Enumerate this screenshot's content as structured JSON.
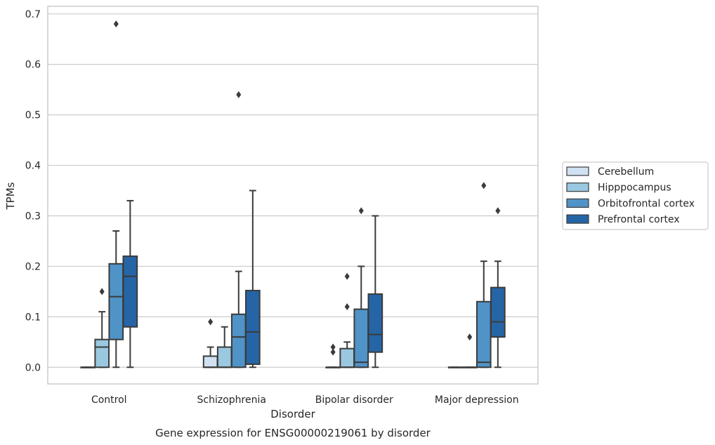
{
  "caption": "Gene expression for ENSG00000219061 by disorder",
  "chart_data": {
    "type": "box",
    "xlabel": "Disorder",
    "ylabel": "TPMs",
    "ylim": [
      -0.033,
      0.715
    ],
    "yticks": [
      "0.0",
      "0.1",
      "0.2",
      "0.3",
      "0.4",
      "0.5",
      "0.6",
      "0.7"
    ],
    "grid": true,
    "legend_position": "right",
    "categories": [
      "Control",
      "Schizophrenia",
      "Bipolar disorder",
      "Major depression"
    ],
    "series": [
      {
        "name": "Cerebellum",
        "color": "#d0e2f2",
        "boxes": [
          {
            "q1": 0,
            "median": 0,
            "q3": 0,
            "whisker_low": 0,
            "whisker_high": 0,
            "outliers": []
          },
          {
            "q1": 0,
            "median": 0,
            "q3": 0.022,
            "whisker_low": 0,
            "whisker_high": 0.04,
            "outliers": [
              0.09
            ]
          },
          {
            "q1": 0,
            "median": 0,
            "q3": 0,
            "whisker_low": 0,
            "whisker_high": 0,
            "outliers": [
              0.03,
              0.04
            ]
          },
          {
            "q1": 0,
            "median": 0,
            "q3": 0,
            "whisker_low": 0,
            "whisker_high": 0,
            "outliers": []
          }
        ]
      },
      {
        "name": "Hipppocampus",
        "color": "#9ac8e0",
        "boxes": [
          {
            "q1": 0,
            "median": 0.04,
            "q3": 0.055,
            "whisker_low": 0,
            "whisker_high": 0.11,
            "outliers": [
              0.15
            ]
          },
          {
            "q1": 0,
            "median": 0,
            "q3": 0.04,
            "whisker_low": 0,
            "whisker_high": 0.08,
            "outliers": []
          },
          {
            "q1": 0,
            "median": 0,
            "q3": 0.037,
            "whisker_low": 0,
            "whisker_high": 0.05,
            "outliers": [
              0.12,
              0.18
            ]
          },
          {
            "q1": 0,
            "median": 0,
            "q3": 0,
            "whisker_low": 0,
            "whisker_high": 0,
            "outliers": [
              0.06
            ]
          }
        ]
      },
      {
        "name": "Orbitofrontal cortex",
        "color": "#5093c7",
        "boxes": [
          {
            "q1": 0.055,
            "median": 0.14,
            "q3": 0.205,
            "whisker_low": 0,
            "whisker_high": 0.27,
            "outliers": [
              0.68
            ]
          },
          {
            "q1": 0,
            "median": 0.06,
            "q3": 0.105,
            "whisker_low": 0,
            "whisker_high": 0.19,
            "outliers": [
              0.54
            ]
          },
          {
            "q1": 0,
            "median": 0.01,
            "q3": 0.115,
            "whisker_low": 0,
            "whisker_high": 0.2,
            "outliers": [
              0.31
            ]
          },
          {
            "q1": 0,
            "median": 0.01,
            "q3": 0.13,
            "whisker_low": 0,
            "whisker_high": 0.21,
            "outliers": [
              0.36
            ]
          }
        ]
      },
      {
        "name": "Prefrontal cortex",
        "color": "#2565a6",
        "boxes": [
          {
            "q1": 0.08,
            "median": 0.18,
            "q3": 0.22,
            "whisker_low": 0,
            "whisker_high": 0.33,
            "outliers": []
          },
          {
            "q1": 0.006,
            "median": 0.07,
            "q3": 0.152,
            "whisker_low": 0,
            "whisker_high": 0.35,
            "outliers": []
          },
          {
            "q1": 0.03,
            "median": 0.065,
            "q3": 0.145,
            "whisker_low": 0,
            "whisker_high": 0.3,
            "outliers": []
          },
          {
            "q1": 0.06,
            "median": 0.09,
            "q3": 0.158,
            "whisker_low": 0,
            "whisker_high": 0.21,
            "outliers": [
              0.31
            ]
          }
        ]
      }
    ]
  }
}
